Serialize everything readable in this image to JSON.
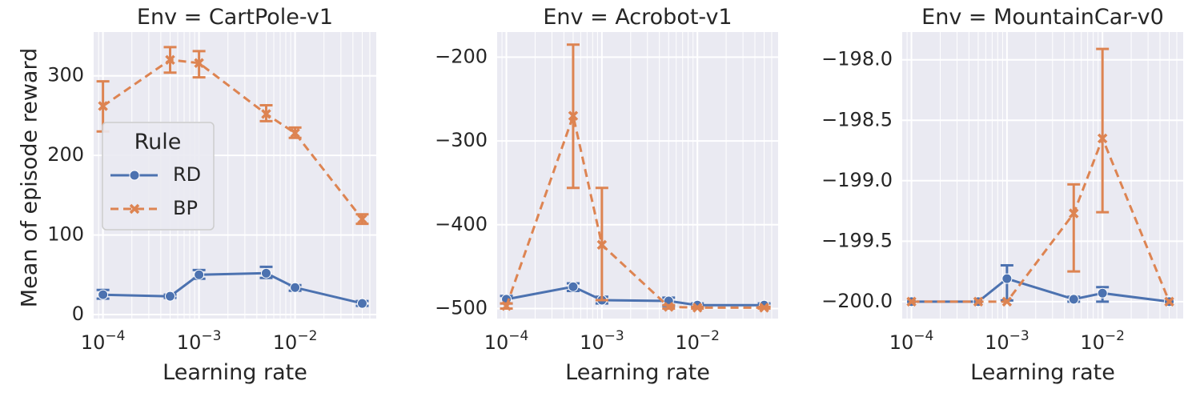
{
  "figure": {
    "ylabel": "Mean of episode reward",
    "xlabel": "Learning rate",
    "xscale": "log",
    "legend": {
      "title": "Rule",
      "placement": "center-left of first panel",
      "entries": [
        {
          "label": "RD",
          "marker": "circle",
          "line": "solid",
          "color": "#4c72b0"
        },
        {
          "label": "BP",
          "marker": "x",
          "line": "dashed",
          "color": "#dd8452"
        }
      ]
    },
    "style": {
      "background": "#eaeaf2",
      "grid": true,
      "grid_color": "#ffffff"
    }
  },
  "chart_data": [
    {
      "type": "line",
      "title": "Env = CartPole-v1",
      "xscale": "log",
      "xlabel": "Learning rate",
      "ylabel": "Mean of episode reward",
      "xlim": [
        8e-05,
        0.07
      ],
      "ylim": [
        -5,
        355
      ],
      "yticks": [
        {
          "v": 0,
          "label": "0"
        },
        {
          "v": 100,
          "label": "100"
        },
        {
          "v": 200,
          "label": "200"
        },
        {
          "v": 300,
          "label": "300"
        }
      ],
      "x": [
        0.0001,
        0.0005,
        0.001,
        0.005,
        0.01,
        0.05
      ],
      "series": [
        {
          "name": "RD",
          "y": [
            25,
            23,
            50,
            52,
            34,
            14
          ],
          "err_low": [
            20,
            21,
            45,
            46,
            30,
            11
          ],
          "err_high": [
            31,
            25,
            56,
            60,
            37,
            17
          ]
        },
        {
          "name": "BP",
          "y": [
            262,
            320,
            316,
            252,
            228,
            120
          ],
          "err_low": [
            230,
            304,
            298,
            243,
            222,
            114
          ],
          "err_high": [
            293,
            336,
            331,
            263,
            235,
            126
          ]
        }
      ]
    },
    {
      "type": "line",
      "title": "Env = Acrobot-v1",
      "xscale": "log",
      "xlabel": "Learning rate",
      "ylabel": "",
      "xlim": [
        8e-05,
        0.07
      ],
      "ylim": [
        -512,
        -170
      ],
      "yticks": [
        {
          "v": -500,
          "label": "−500"
        },
        {
          "v": -400,
          "label": "−400"
        },
        {
          "v": -300,
          "label": "−300"
        },
        {
          "v": -200,
          "label": "−200"
        }
      ],
      "x": [
        0.0001,
        0.0005,
        0.001,
        0.005,
        0.01,
        0.05
      ],
      "series": [
        {
          "name": "RD",
          "y": [
            -489,
            -474,
            -490,
            -491,
            -496,
            -496
          ],
          "err_low": [
            -494,
            -479,
            -494,
            -497,
            -498,
            -498
          ],
          "err_high": [
            -485,
            -470,
            -486,
            -487,
            -494,
            -494
          ]
        },
        {
          "name": "BP",
          "y": [
            -497,
            -270,
            -424,
            -498,
            -499,
            -499
          ],
          "err_low": [
            -500,
            -356,
            -490,
            -500,
            -500,
            -500
          ],
          "err_high": [
            -494,
            -185,
            -356,
            -496,
            -498,
            -498
          ]
        }
      ]
    },
    {
      "type": "line",
      "title": "Env = MountainCar-v0",
      "xscale": "log",
      "xlabel": "Learning rate",
      "ylabel": "",
      "xlim": [
        8e-05,
        0.07
      ],
      "ylim": [
        -200.14,
        -197.77
      ],
      "yticks": [
        {
          "v": -200,
          "label": "−200.0"
        },
        {
          "v": -199.5,
          "label": "−199.5"
        },
        {
          "v": -199,
          "label": "−199.0"
        },
        {
          "v": -198.5,
          "label": "−198.5"
        },
        {
          "v": -198,
          "label": "−198.0"
        }
      ],
      "x": [
        0.0001,
        0.0005,
        0.001,
        0.005,
        0.01,
        0.05
      ],
      "series": [
        {
          "name": "RD",
          "y": [
            -200,
            -200,
            -199.81,
            -199.98,
            -199.93,
            -200
          ],
          "err_low": [
            -200,
            -200,
            -199.99,
            -200,
            -200,
            -200
          ],
          "err_high": [
            -200,
            -200,
            -199.7,
            -199.96,
            -199.88,
            -200
          ]
        },
        {
          "name": "BP",
          "y": [
            -200,
            -200,
            -200,
            -199.27,
            -198.65,
            -200
          ],
          "err_low": [
            -200,
            -200,
            -200,
            -199.75,
            -199.26,
            -200
          ],
          "err_high": [
            -200,
            -200,
            -200,
            -199.03,
            -197.91,
            -200
          ]
        }
      ]
    }
  ]
}
